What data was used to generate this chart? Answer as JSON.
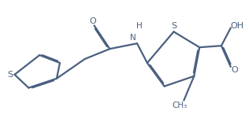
{
  "bg_color": "#ffffff",
  "line_color": "#4a6080",
  "line_width": 1.6,
  "dbo": 0.012,
  "figsize": [
    3.11,
    1.5
  ],
  "dpi": 100,
  "xlim": [
    0,
    311
  ],
  "ylim": [
    0,
    150
  ]
}
